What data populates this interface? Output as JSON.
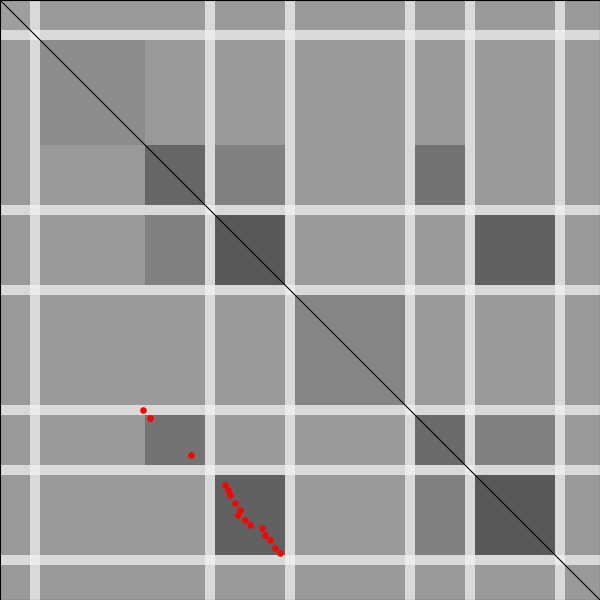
{
  "chart_data": {
    "type": "heatmap",
    "x_edges": [
      0,
      30,
      40,
      145,
      205,
      215,
      285,
      295,
      405,
      415,
      465,
      475,
      555,
      565,
      600
    ],
    "y_edges": [
      0,
      30,
      40,
      145,
      205,
      215,
      285,
      295,
      405,
      415,
      465,
      475,
      555,
      565,
      600
    ],
    "cells": [
      [
        0.62,
        0.85,
        0.6,
        0.6,
        0.85,
        0.6,
        0.85,
        0.6,
        0.85,
        0.6,
        0.85,
        0.6,
        0.85,
        0.6
      ],
      [
        0.85,
        0.92,
        0.85,
        0.85,
        0.92,
        0.85,
        0.92,
        0.85,
        0.92,
        0.85,
        0.92,
        0.85,
        0.92,
        0.85
      ],
      [
        0.6,
        0.85,
        0.55,
        0.6,
        0.85,
        0.6,
        0.85,
        0.6,
        0.85,
        0.6,
        0.85,
        0.6,
        0.85,
        0.6
      ],
      [
        0.6,
        0.85,
        0.6,
        0.4,
        0.85,
        0.5,
        0.85,
        0.6,
        0.85,
        0.45,
        0.85,
        0.6,
        0.85,
        0.6
      ],
      [
        0.85,
        0.92,
        0.85,
        0.85,
        0.92,
        0.85,
        0.92,
        0.85,
        0.92,
        0.85,
        0.92,
        0.85,
        0.92,
        0.85
      ],
      [
        0.6,
        0.85,
        0.6,
        0.5,
        0.85,
        0.35,
        0.85,
        0.6,
        0.85,
        0.6,
        0.85,
        0.38,
        0.85,
        0.6
      ],
      [
        0.85,
        0.92,
        0.85,
        0.85,
        0.92,
        0.85,
        0.92,
        0.85,
        0.92,
        0.85,
        0.92,
        0.85,
        0.92,
        0.85
      ],
      [
        0.6,
        0.85,
        0.6,
        0.6,
        0.85,
        0.6,
        0.85,
        0.52,
        0.85,
        0.6,
        0.85,
        0.6,
        0.85,
        0.6
      ],
      [
        0.85,
        0.92,
        0.85,
        0.85,
        0.92,
        0.85,
        0.92,
        0.85,
        0.92,
        0.85,
        0.92,
        0.85,
        0.92,
        0.85
      ],
      [
        0.6,
        0.85,
        0.6,
        0.45,
        0.85,
        0.6,
        0.85,
        0.6,
        0.85,
        0.42,
        0.85,
        0.5,
        0.85,
        0.6
      ],
      [
        0.85,
        0.92,
        0.85,
        0.85,
        0.92,
        0.85,
        0.92,
        0.85,
        0.92,
        0.85,
        0.92,
        0.85,
        0.92,
        0.85
      ],
      [
        0.6,
        0.85,
        0.6,
        0.6,
        0.85,
        0.38,
        0.85,
        0.6,
        0.85,
        0.5,
        0.85,
        0.35,
        0.85,
        0.6
      ],
      [
        0.85,
        0.92,
        0.85,
        0.85,
        0.92,
        0.85,
        0.92,
        0.85,
        0.92,
        0.85,
        0.92,
        0.85,
        0.92,
        0.85
      ],
      [
        0.6,
        0.85,
        0.6,
        0.6,
        0.85,
        0.6,
        0.85,
        0.6,
        0.85,
        0.6,
        0.85,
        0.6,
        0.85,
        0.6
      ]
    ],
    "color_range": [
      0,
      1
    ],
    "xlim": [
      0,
      600
    ],
    "ylim": [
      600,
      0
    ],
    "tick_labels": false,
    "diagonal": {
      "x": [
        0,
        600
      ],
      "y": [
        0,
        600
      ],
      "color": "#000000"
    },
    "points": {
      "x": [
        143,
        150,
        191,
        225,
        228,
        230,
        235,
        238,
        240,
        245,
        250,
        262,
        265,
        270,
        275,
        280
      ],
      "y": [
        410,
        418,
        455,
        485,
        490,
        495,
        503,
        515,
        510,
        520,
        525,
        528,
        535,
        540,
        548,
        553
      ],
      "color": "#ff0000",
      "marker": "o"
    }
  }
}
